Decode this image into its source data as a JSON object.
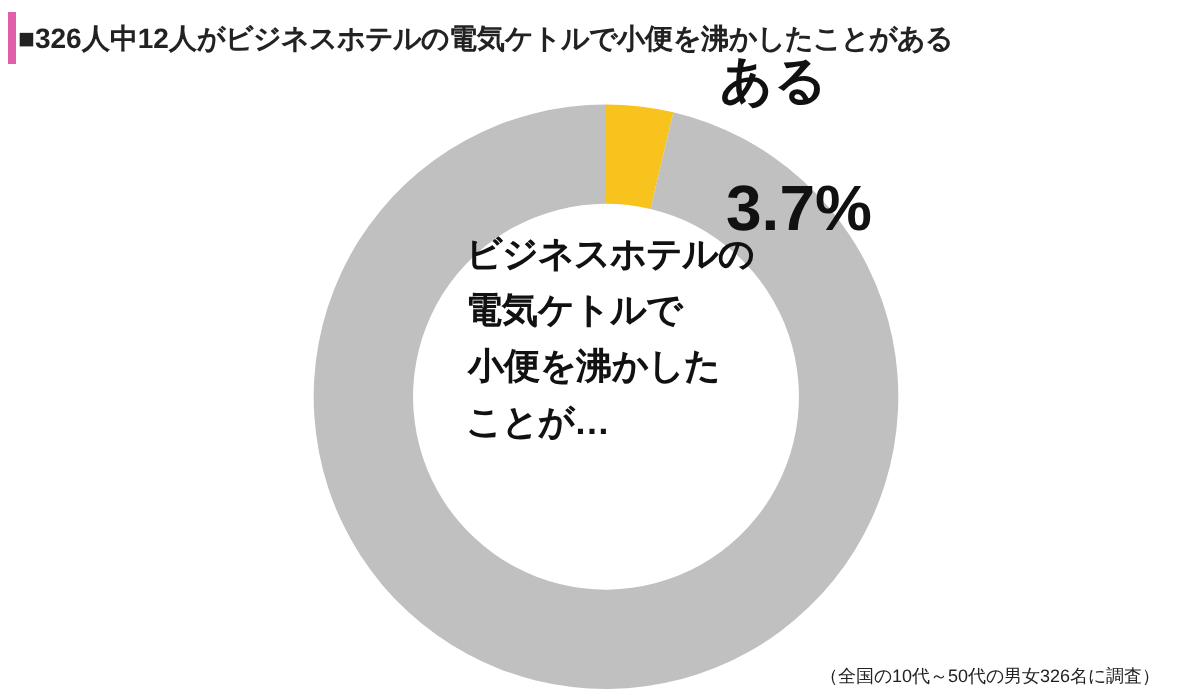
{
  "chart_data": {
    "type": "donut",
    "title": "■326人中12人がビジネスホテルの電気ケトルで小便を沸かしたことがある",
    "categories": [
      "ある",
      null
    ],
    "values": [
      3.7,
      96.3
    ],
    "colors": [
      "#f7c31c",
      "#c0c0c0"
    ],
    "value_labels": [
      "3.7%",
      null
    ],
    "annotations": [
      "ビジネスホテルの",
      "電気ケトルで",
      "小便を沸かした",
      "ことが…",
      "（全国の10代～50代の男女326名に調査）"
    ]
  }
}
